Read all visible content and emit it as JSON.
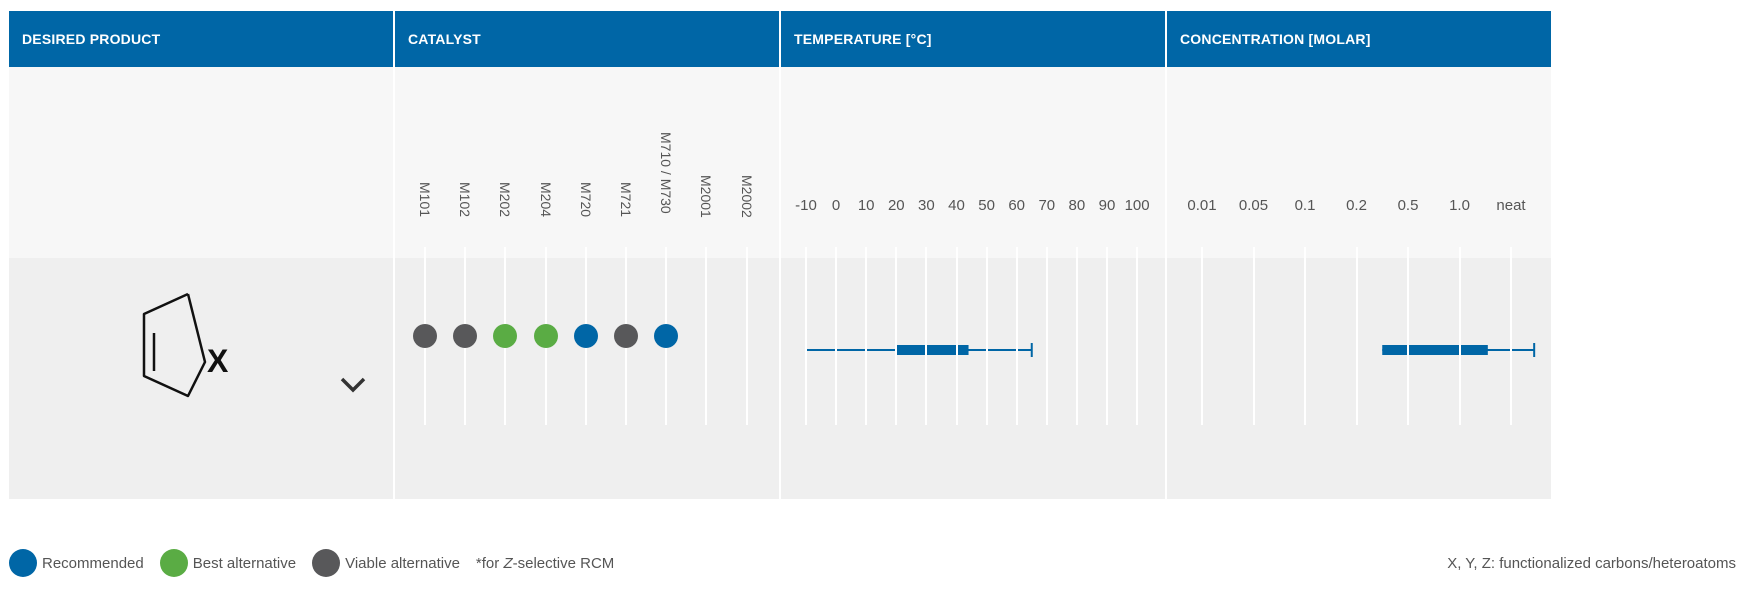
{
  "headers": {
    "product": "DESIRED PRODUCT",
    "catalyst": "CATALYST",
    "temperature": "TEMPERATURE [°C]",
    "concentration": "CONCENTRATION [MOLAR]"
  },
  "product": {
    "structure_label": "X",
    "expand_icon": "chevron-down-icon"
  },
  "catalysts": {
    "labels": [
      "M101",
      "M102",
      "M202",
      "M204",
      "M720",
      "M721",
      "M710 / M730",
      "M2001",
      "M2002"
    ],
    "ratings": [
      "viable",
      "viable",
      "best",
      "best",
      "recommended",
      "viable",
      "recommended",
      null,
      null
    ]
  },
  "temperature": {
    "ticks": [
      "-10",
      "0",
      "10",
      "20",
      "30",
      "40",
      "50",
      "60",
      "70",
      "80",
      "90",
      "100"
    ],
    "range_min": -10,
    "range_max": 65,
    "box_low": 20,
    "box_high": 44
  },
  "concentration": {
    "ticks": [
      "0.01",
      "0.05",
      "0.1",
      "0.2",
      "0.5",
      "1.0",
      "neat"
    ],
    "range_min_index": 3.5,
    "range_max_index": 6.45,
    "box_low_index": 3.5,
    "box_high_index": 5.55
  },
  "legend": {
    "recommended": "Recommended",
    "best": "Best alternative",
    "viable": "Viable alternative",
    "note_prefix": "*for ",
    "note_italic": "Z",
    "note_suffix": "-selective RCM",
    "footnote": "X, Y, Z: functionalized carbons/heteroatoms"
  },
  "colors": {
    "brand": "#0066a6",
    "recommended": "#0066a6",
    "best": "#5aac44",
    "viable": "#58585a"
  }
}
